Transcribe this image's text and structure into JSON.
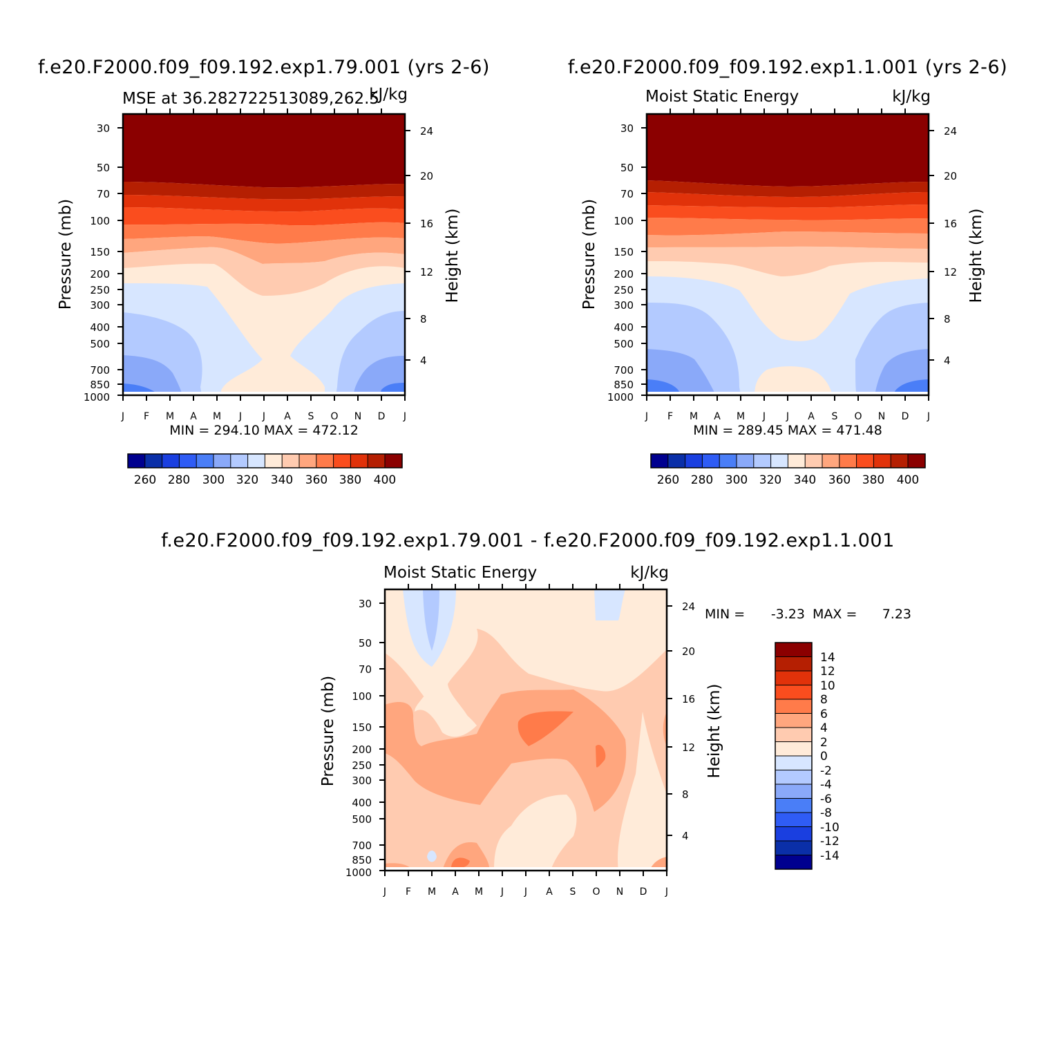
{
  "colors": {
    "mse_levels": [
      "#00008f",
      "#0a2fa8",
      "#1a3fe0",
      "#2f5cf5",
      "#4a7ef7",
      "#8aa9f9",
      "#b3caff",
      "#d7e6ff",
      "#ffebd9",
      "#ffcbb0",
      "#ffa67e",
      "#ff7b4a",
      "#fa4d1e",
      "#e1320a",
      "#b51f02",
      "#8b0000"
    ],
    "diff_levels": [
      "#00008f",
      "#0a2fa8",
      "#1a3fe0",
      "#2f5cf5",
      "#4a7ef7",
      "#8aa9f9",
      "#b3caff",
      "#d7e6ff",
      "#ffebd9",
      "#ffcbb0",
      "#ffa67e",
      "#ff7b4a",
      "#fa4d1e",
      "#e1320a",
      "#b51f02",
      "#8b0000"
    ]
  },
  "chart_data": [
    {
      "type": "heatmap",
      "id": "panel_left",
      "title": "f.e20.F2000.f09_f09.192.exp1.79.001 (yrs 2-6)",
      "subtitle": "MSE at 36.282722513089,262.5",
      "units": "kJ/kg",
      "xlabel": "",
      "ylabel": "Pressure (mb)",
      "ylabel_right": "Height (km)",
      "x_ticks": [
        "J",
        "F",
        "M",
        "A",
        "M",
        "J",
        "J",
        "A",
        "S",
        "O",
        "N",
        "D",
        "J"
      ],
      "y_ticks": [
        "30",
        "50",
        "70",
        "100",
        "150",
        "200",
        "250",
        "300",
        "400",
        "500",
        "700",
        "850",
        "1000"
      ],
      "y_right_ticks": [
        "24",
        "20",
        "16",
        "12",
        "8",
        "4"
      ],
      "stats": "MIN = 294.10 MAX = 472.12",
      "colorbar_levels": [
        250,
        260,
        270,
        280,
        290,
        300,
        310,
        320,
        330,
        340,
        350,
        360,
        370,
        380,
        390,
        400
      ],
      "colorbar_labels": [
        "260",
        "280",
        "300",
        "320",
        "340",
        "360",
        "380",
        "400"
      ]
    },
    {
      "type": "heatmap",
      "id": "panel_right",
      "title": "f.e20.F2000.f09_f09.192.exp1.1.001 (yrs 2-6)",
      "subtitle": "Moist Static Energy",
      "units": "kJ/kg",
      "xlabel": "",
      "ylabel": "Pressure (mb)",
      "ylabel_right": "Height (km)",
      "x_ticks": [
        "J",
        "F",
        "M",
        "A",
        "M",
        "J",
        "J",
        "A",
        "S",
        "O",
        "N",
        "D",
        "J"
      ],
      "y_ticks": [
        "30",
        "50",
        "70",
        "100",
        "150",
        "200",
        "250",
        "300",
        "400",
        "500",
        "700",
        "850",
        "1000"
      ],
      "y_right_ticks": [
        "24",
        "20",
        "16",
        "12",
        "8",
        "4"
      ],
      "stats": "MIN = 289.45 MAX = 471.48",
      "colorbar_levels": [
        250,
        260,
        270,
        280,
        290,
        300,
        310,
        320,
        330,
        340,
        350,
        360,
        370,
        380,
        390,
        400
      ],
      "colorbar_labels": [
        "260",
        "280",
        "300",
        "320",
        "340",
        "360",
        "380",
        "400"
      ]
    },
    {
      "type": "heatmap",
      "id": "panel_diff",
      "title": "f.e20.F2000.f09_f09.192.exp1.79.001 - f.e20.F2000.f09_f09.192.exp1.1.001",
      "subtitle": "Moist Static Energy",
      "units": "kJ/kg",
      "xlabel": "",
      "ylabel": "Pressure (mb)",
      "ylabel_right": "Height (km)",
      "x_ticks": [
        "J",
        "F",
        "M",
        "A",
        "M",
        "J",
        "J",
        "A",
        "S",
        "O",
        "N",
        "D",
        "J"
      ],
      "y_ticks": [
        "30",
        "50",
        "70",
        "100",
        "150",
        "200",
        "250",
        "300",
        "400",
        "500",
        "700",
        "850",
        "1000"
      ],
      "y_right_ticks": [
        "24",
        "20",
        "16",
        "12",
        "8",
        "4"
      ],
      "stats_min": "MIN =",
      "stats_min_val": "-3.23",
      "stats_max": "MAX =",
      "stats_max_val": "7.23",
      "colorbar_labels": [
        "14",
        "12",
        "10",
        "8",
        "6",
        "4",
        "2",
        "0",
        "-2",
        "-4",
        "-6",
        "-8",
        "-10",
        "-12",
        "-14"
      ]
    }
  ]
}
